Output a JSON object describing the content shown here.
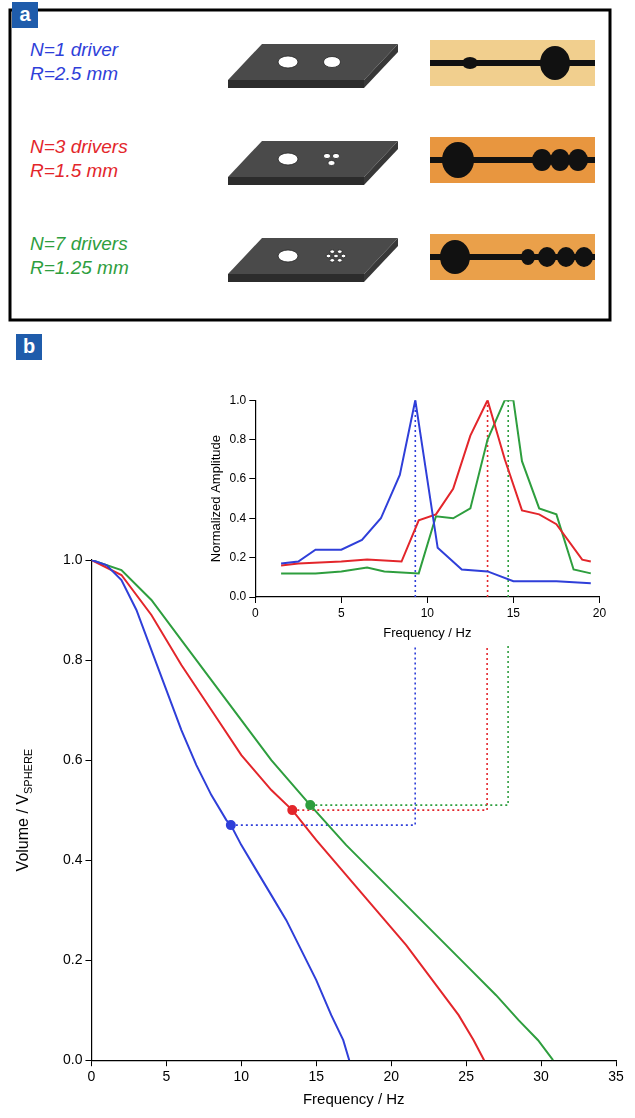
{
  "panel_a": {
    "label": "a",
    "rows": [
      {
        "lines": [
          "N=1 driver",
          "R=2.5 mm"
        ],
        "color": "#2f3fd9"
      },
      {
        "lines": [
          "N=3 drivers",
          "R=1.5 mm"
        ],
        "color": "#e3262b"
      },
      {
        "lines": [
          "N=7 drivers",
          "R=1.25 mm"
        ],
        "color": "#2e9e3e"
      }
    ]
  },
  "chart_data": [
    {
      "type": "line",
      "panel": "b",
      "xlabel": "Frequency / Hz",
      "ylabel": {
        "text": "Volume / V",
        "subscript": "SPHERE"
      },
      "xlim": [
        0,
        35
      ],
      "xticks": [
        0,
        5,
        10,
        15,
        20,
        25,
        30,
        35
      ],
      "ylim": [
        0,
        1
      ],
      "yticks": [
        {
          "value": 0,
          "label": "0.0"
        },
        {
          "value": 0.2,
          "label": "0.2"
        },
        {
          "value": 0.4,
          "label": "0.4"
        },
        {
          "value": 0.6,
          "label": "0.6"
        },
        {
          "value": 0.8,
          "label": "0.8"
        },
        {
          "value": 1,
          "label": "1.0"
        }
      ],
      "grid": false,
      "series": [
        {
          "color": "#2f3fd9",
          "line_style": "solid",
          "marker": "none",
          "x": [
            0,
            1,
            2,
            3,
            4,
            5,
            6,
            7,
            8,
            9,
            9.3,
            10,
            11,
            12,
            13,
            14,
            15,
            16,
            16.8,
            17.2
          ],
          "values": [
            1,
            0.99,
            0.96,
            0.9,
            0.82,
            0.74,
            0.66,
            0.59,
            0.53,
            0.48,
            0.47,
            0.43,
            0.38,
            0.33,
            0.28,
            0.22,
            0.16,
            0.09,
            0.04,
            0
          ]
        },
        {
          "color": "#e3262b",
          "line_style": "solid",
          "marker": "none",
          "x": [
            0,
            2,
            4,
            6,
            8,
            10,
            12,
            13.4,
            15,
            17,
            19,
            21,
            23,
            24.5,
            25.5,
            26.2
          ],
          "values": [
            1,
            0.97,
            0.89,
            0.79,
            0.7,
            0.61,
            0.54,
            0.5,
            0.44,
            0.37,
            0.3,
            0.23,
            0.15,
            0.09,
            0.04,
            0
          ]
        },
        {
          "color": "#2e9e3e",
          "line_style": "solid",
          "marker": "none",
          "x": [
            0,
            2,
            4,
            6,
            8,
            10,
            12,
            14.6,
            17,
            19,
            21,
            23,
            25,
            27,
            28.5,
            29.8,
            30.8
          ],
          "values": [
            1,
            0.98,
            0.92,
            0.84,
            0.76,
            0.68,
            0.6,
            0.51,
            0.43,
            0.37,
            0.31,
            0.25,
            0.19,
            0.13,
            0.08,
            0.04,
            0
          ]
        },
        {
          "color": "#2f3fd9",
          "line_style": "dotted",
          "marker": "none",
          "x": [
            9.3,
            21.6,
            21.6
          ],
          "values": [
            0.47,
            0.47,
            1
          ]
        },
        {
          "color": "#e3262b",
          "line_style": "dotted",
          "marker": "none",
          "x": [
            13.4,
            26.4,
            26.4
          ],
          "values": [
            0.5,
            0.5,
            1
          ]
        },
        {
          "color": "#2e9e3e",
          "line_style": "dotted",
          "marker": "none",
          "x": [
            14.6,
            27.8,
            27.8
          ],
          "values": [
            0.51,
            0.51,
            1
          ]
        },
        {
          "type": "scatter",
          "color": "#2f3fd9",
          "marker": "circle",
          "x": [
            9.3
          ],
          "values": [
            0.47
          ]
        },
        {
          "type": "scatter",
          "color": "#e3262b",
          "marker": "circle",
          "x": [
            13.4
          ],
          "values": [
            0.5
          ]
        },
        {
          "type": "scatter",
          "color": "#2e9e3e",
          "marker": "circle",
          "x": [
            14.6
          ],
          "values": [
            0.51
          ]
        }
      ]
    },
    {
      "type": "line",
      "xlabel": "Frequency / Hz",
      "ylabel": "Normalized Amplitude",
      "xlim": [
        0,
        20
      ],
      "xticks": [
        0,
        5,
        10,
        15,
        20
      ],
      "ylim": [
        0,
        1
      ],
      "yticks": [
        {
          "value": 0,
          "label": "0.0"
        },
        {
          "value": 0.2,
          "label": "0.2"
        },
        {
          "value": 0.4,
          "label": "0.4"
        },
        {
          "value": 0.6,
          "label": "0.6"
        },
        {
          "value": 0.8,
          "label": "0.8"
        },
        {
          "value": 1,
          "label": "1.0"
        }
      ],
      "grid": false,
      "series": [
        {
          "color": "#2f3fd9",
          "line_style": "solid",
          "marker": "none",
          "x": [
            1.5,
            2.5,
            3.5,
            5,
            6.2,
            7.3,
            8.4,
            9.3,
            10.6,
            12,
            13.5,
            15,
            17.5,
            19.5
          ],
          "values": [
            0.17,
            0.18,
            0.24,
            0.24,
            0.29,
            0.4,
            0.62,
            1,
            0.25,
            0.14,
            0.13,
            0.08,
            0.08,
            0.07
          ]
        },
        {
          "color": "#e3262b",
          "line_style": "solid",
          "marker": "none",
          "x": [
            1.5,
            2.5,
            5,
            6.5,
            8.5,
            9.5,
            10.5,
            11.5,
            12.5,
            13.5,
            14.5,
            15.5,
            16.5,
            17.5,
            19,
            19.5
          ],
          "values": [
            0.16,
            0.17,
            0.18,
            0.19,
            0.18,
            0.39,
            0.42,
            0.55,
            0.82,
            1,
            0.7,
            0.44,
            0.42,
            0.37,
            0.19,
            0.18
          ]
        },
        {
          "color": "#2e9e3e",
          "line_style": "solid",
          "marker": "none",
          "x": [
            1.5,
            3.5,
            5,
            6.5,
            7.5,
            9.5,
            10.5,
            11.5,
            12.5,
            13.5,
            14.5,
            15,
            15.5,
            16.5,
            17.5,
            18.5,
            19.5
          ],
          "values": [
            0.12,
            0.12,
            0.13,
            0.15,
            0.13,
            0.12,
            0.41,
            0.4,
            0.45,
            0.8,
            1,
            1,
            0.69,
            0.45,
            0.42,
            0.14,
            0.12
          ]
        },
        {
          "color": "#2f3fd9",
          "line_style": "dotted",
          "marker": "none",
          "x": [
            9.3,
            9.3
          ],
          "values": [
            0,
            1
          ]
        },
        {
          "color": "#e3262b",
          "line_style": "dotted",
          "marker": "none",
          "x": [
            13.5,
            13.5
          ],
          "values": [
            0,
            1
          ]
        },
        {
          "color": "#2e9e3e",
          "line_style": "dotted",
          "marker": "none",
          "x": [
            14.7,
            14.7
          ],
          "values": [
            0,
            1
          ]
        }
      ]
    }
  ]
}
